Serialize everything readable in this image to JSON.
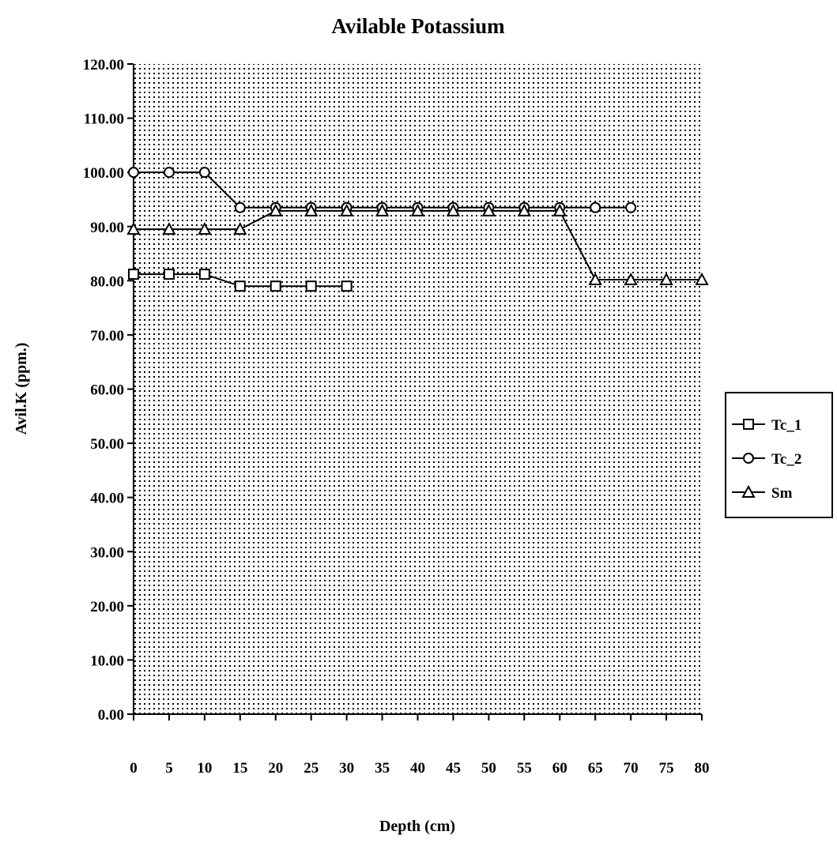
{
  "chart_data": {
    "type": "line",
    "title": "Avilable Potassium",
    "xlabel": "Depth (cm)",
    "ylabel": "Avil.K (ppm.)",
    "x": [
      0,
      5,
      10,
      15,
      20,
      25,
      30,
      35,
      40,
      45,
      50,
      55,
      60,
      65,
      70,
      75,
      80
    ],
    "x_tick_labels": [
      "0",
      "5",
      "10",
      "15",
      "20",
      "25",
      "30",
      "35",
      "40",
      "45",
      "50",
      "55",
      "60",
      "65",
      "70",
      "75",
      "80"
    ],
    "y_tick_labels": [
      "0.00",
      "10.00",
      "20.00",
      "30.00",
      "40.00",
      "50.00",
      "60.00",
      "70.00",
      "80.00",
      "90.00",
      "100.00",
      "110.00",
      "120.00"
    ],
    "xlim": [
      0,
      80
    ],
    "ylim": [
      0,
      120
    ],
    "grid": "dotted",
    "legend_position": "right",
    "series": [
      {
        "name": "Tc_1",
        "marker": "square",
        "x": [
          0,
          5,
          10,
          15,
          20,
          25,
          30
        ],
        "values": [
          81.2,
          81.2,
          81.2,
          79.0,
          79.0,
          79.0,
          79.0
        ]
      },
      {
        "name": "Tc_2",
        "marker": "circle",
        "x": [
          0,
          5,
          10,
          15,
          20,
          25,
          30,
          35,
          40,
          45,
          50,
          55,
          60,
          65,
          70
        ],
        "values": [
          100.0,
          100.0,
          100.0,
          93.5,
          93.5,
          93.5,
          93.5,
          93.5,
          93.5,
          93.5,
          93.5,
          93.5,
          93.5,
          93.5,
          93.5
        ]
      },
      {
        "name": "Sm",
        "marker": "triangle",
        "x": [
          0,
          5,
          10,
          15,
          20,
          25,
          30,
          35,
          40,
          45,
          50,
          55,
          60,
          65,
          70,
          75,
          80
        ],
        "values": [
          89.5,
          89.5,
          89.5,
          89.5,
          92.9,
          92.9,
          92.9,
          92.9,
          92.9,
          92.9,
          92.9,
          92.9,
          92.9,
          80.2,
          80.2,
          80.2,
          80.2
        ]
      }
    ]
  }
}
